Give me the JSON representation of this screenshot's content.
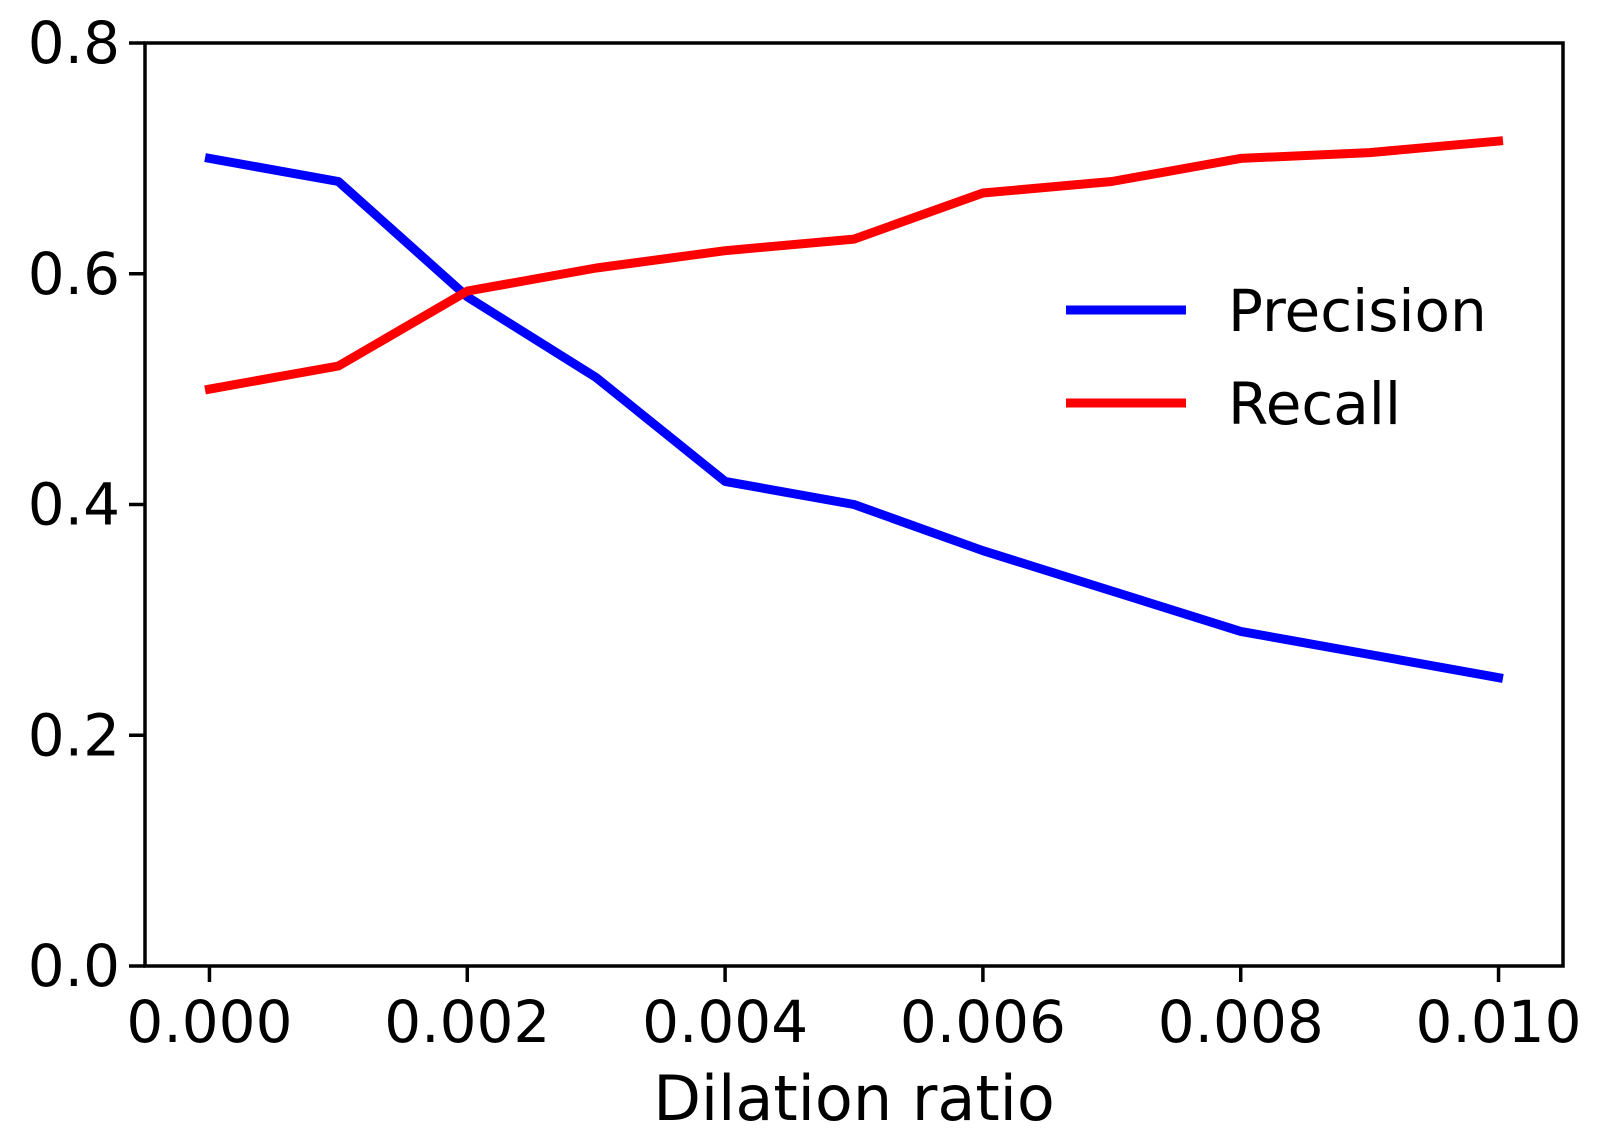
{
  "chart_data": {
    "type": "line",
    "title": "",
    "xlabel": "Dilation ratio",
    "ylabel": "",
    "x": [
      0.0,
      0.001,
      0.002,
      0.003,
      0.004,
      0.005,
      0.006,
      0.007,
      0.008,
      0.009,
      0.01
    ],
    "series": [
      {
        "name": "Precision",
        "color": "#0000ff",
        "values": [
          0.7,
          0.68,
          0.58,
          0.51,
          0.42,
          0.4,
          0.36,
          0.325,
          0.29,
          0.27,
          0.25
        ]
      },
      {
        "name": "Recall",
        "color": "#ff0000",
        "values": [
          0.5,
          0.52,
          0.585,
          0.605,
          0.62,
          0.63,
          0.67,
          0.68,
          0.7,
          0.705,
          0.715
        ]
      }
    ],
    "xlim": [
      -0.0005,
      0.0105
    ],
    "ylim": [
      0.0,
      0.8
    ],
    "xticks": {
      "values": [
        0.0,
        0.002,
        0.004,
        0.006,
        0.008,
        0.01
      ],
      "labels": [
        "0.000",
        "0.002",
        "0.004",
        "0.006",
        "0.008",
        "0.010"
      ]
    },
    "yticks": {
      "values": [
        0.0,
        0.2,
        0.4,
        0.6,
        0.8
      ],
      "labels": [
        "0.0",
        "0.2",
        "0.4",
        "0.6",
        "0.8"
      ]
    },
    "grid": false,
    "legend": {
      "position": "center-right",
      "entries": [
        "Precision",
        "Recall"
      ]
    }
  },
  "styles": {
    "axis_color": "#000000",
    "background": "#ffffff",
    "precision_color": "#0000ff",
    "recall_color": "#ff0000"
  }
}
